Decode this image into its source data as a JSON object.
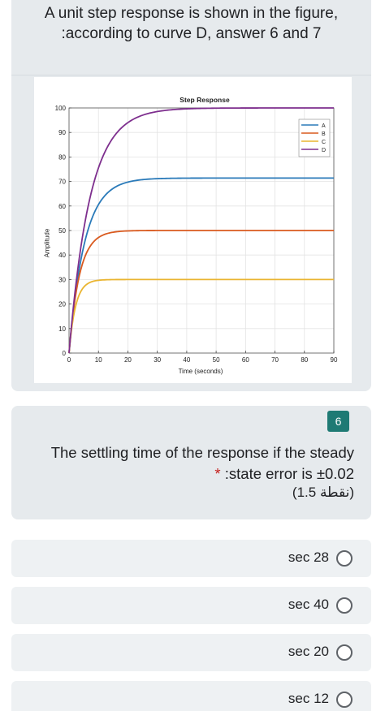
{
  "header": {
    "title_line1": "A unit step response is shown in the figure,",
    "title_line2": ":according to curve D, answer 6 and 7"
  },
  "figure": {
    "title": "Step Response",
    "xlabel": "Time (seconds)",
    "ylabel": "Amplitude"
  },
  "chart_data": {
    "type": "line",
    "title": "Step Response",
    "xlabel": "Time (seconds)",
    "ylabel": "Amplitude",
    "xlim": [
      0,
      90
    ],
    "ylim": [
      0,
      100
    ],
    "xticks": [
      0,
      10,
      20,
      30,
      40,
      50,
      60,
      70,
      80,
      90
    ],
    "yticks": [
      0,
      10,
      20,
      30,
      40,
      50,
      60,
      70,
      80,
      90,
      100
    ],
    "grid": true,
    "legend_position": "top-right",
    "series": [
      {
        "name": "A",
        "color": "#2a7ab9",
        "final_value": 71.4,
        "time_constant": 5.3
      },
      {
        "name": "B",
        "color": "#d95a1f",
        "final_value": 50,
        "time_constant": 3.5
      },
      {
        "name": "C",
        "color": "#eab531",
        "final_value": 30,
        "time_constant": 2.2
      },
      {
        "name": "D",
        "color": "#7e2f8e",
        "final_value": 100,
        "time_constant": 7.1
      }
    ]
  },
  "question": {
    "number": "6",
    "text_line1": "The settling time of the response if the steady",
    "required_mark": "*",
    "text_line2": " :state error is ±0.02",
    "points": "(1.5 نقطة)"
  },
  "options": [
    {
      "label": "sec 28"
    },
    {
      "label": "sec 40"
    },
    {
      "label": "sec 20"
    },
    {
      "label": "sec 12"
    }
  ],
  "colors": {
    "card_bg": "#e6eaed",
    "option_bg": "#eef1f3",
    "badge": "#1e7a74",
    "required": "#c5221f"
  }
}
